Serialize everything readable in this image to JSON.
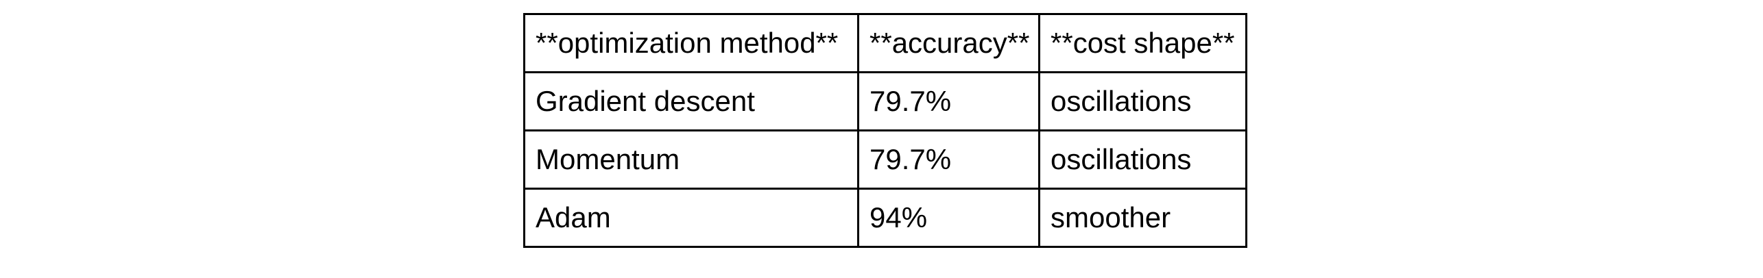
{
  "table": {
    "headers": [
      "**optimization method**",
      "**accuracy**",
      "**cost shape**"
    ],
    "rows": [
      [
        "Gradient descent",
        "79.7%",
        "oscillations"
      ],
      [
        "Momentum",
        "79.7%",
        "oscillations"
      ],
      [
        "Adam",
        "94%",
        "smoother"
      ]
    ]
  }
}
